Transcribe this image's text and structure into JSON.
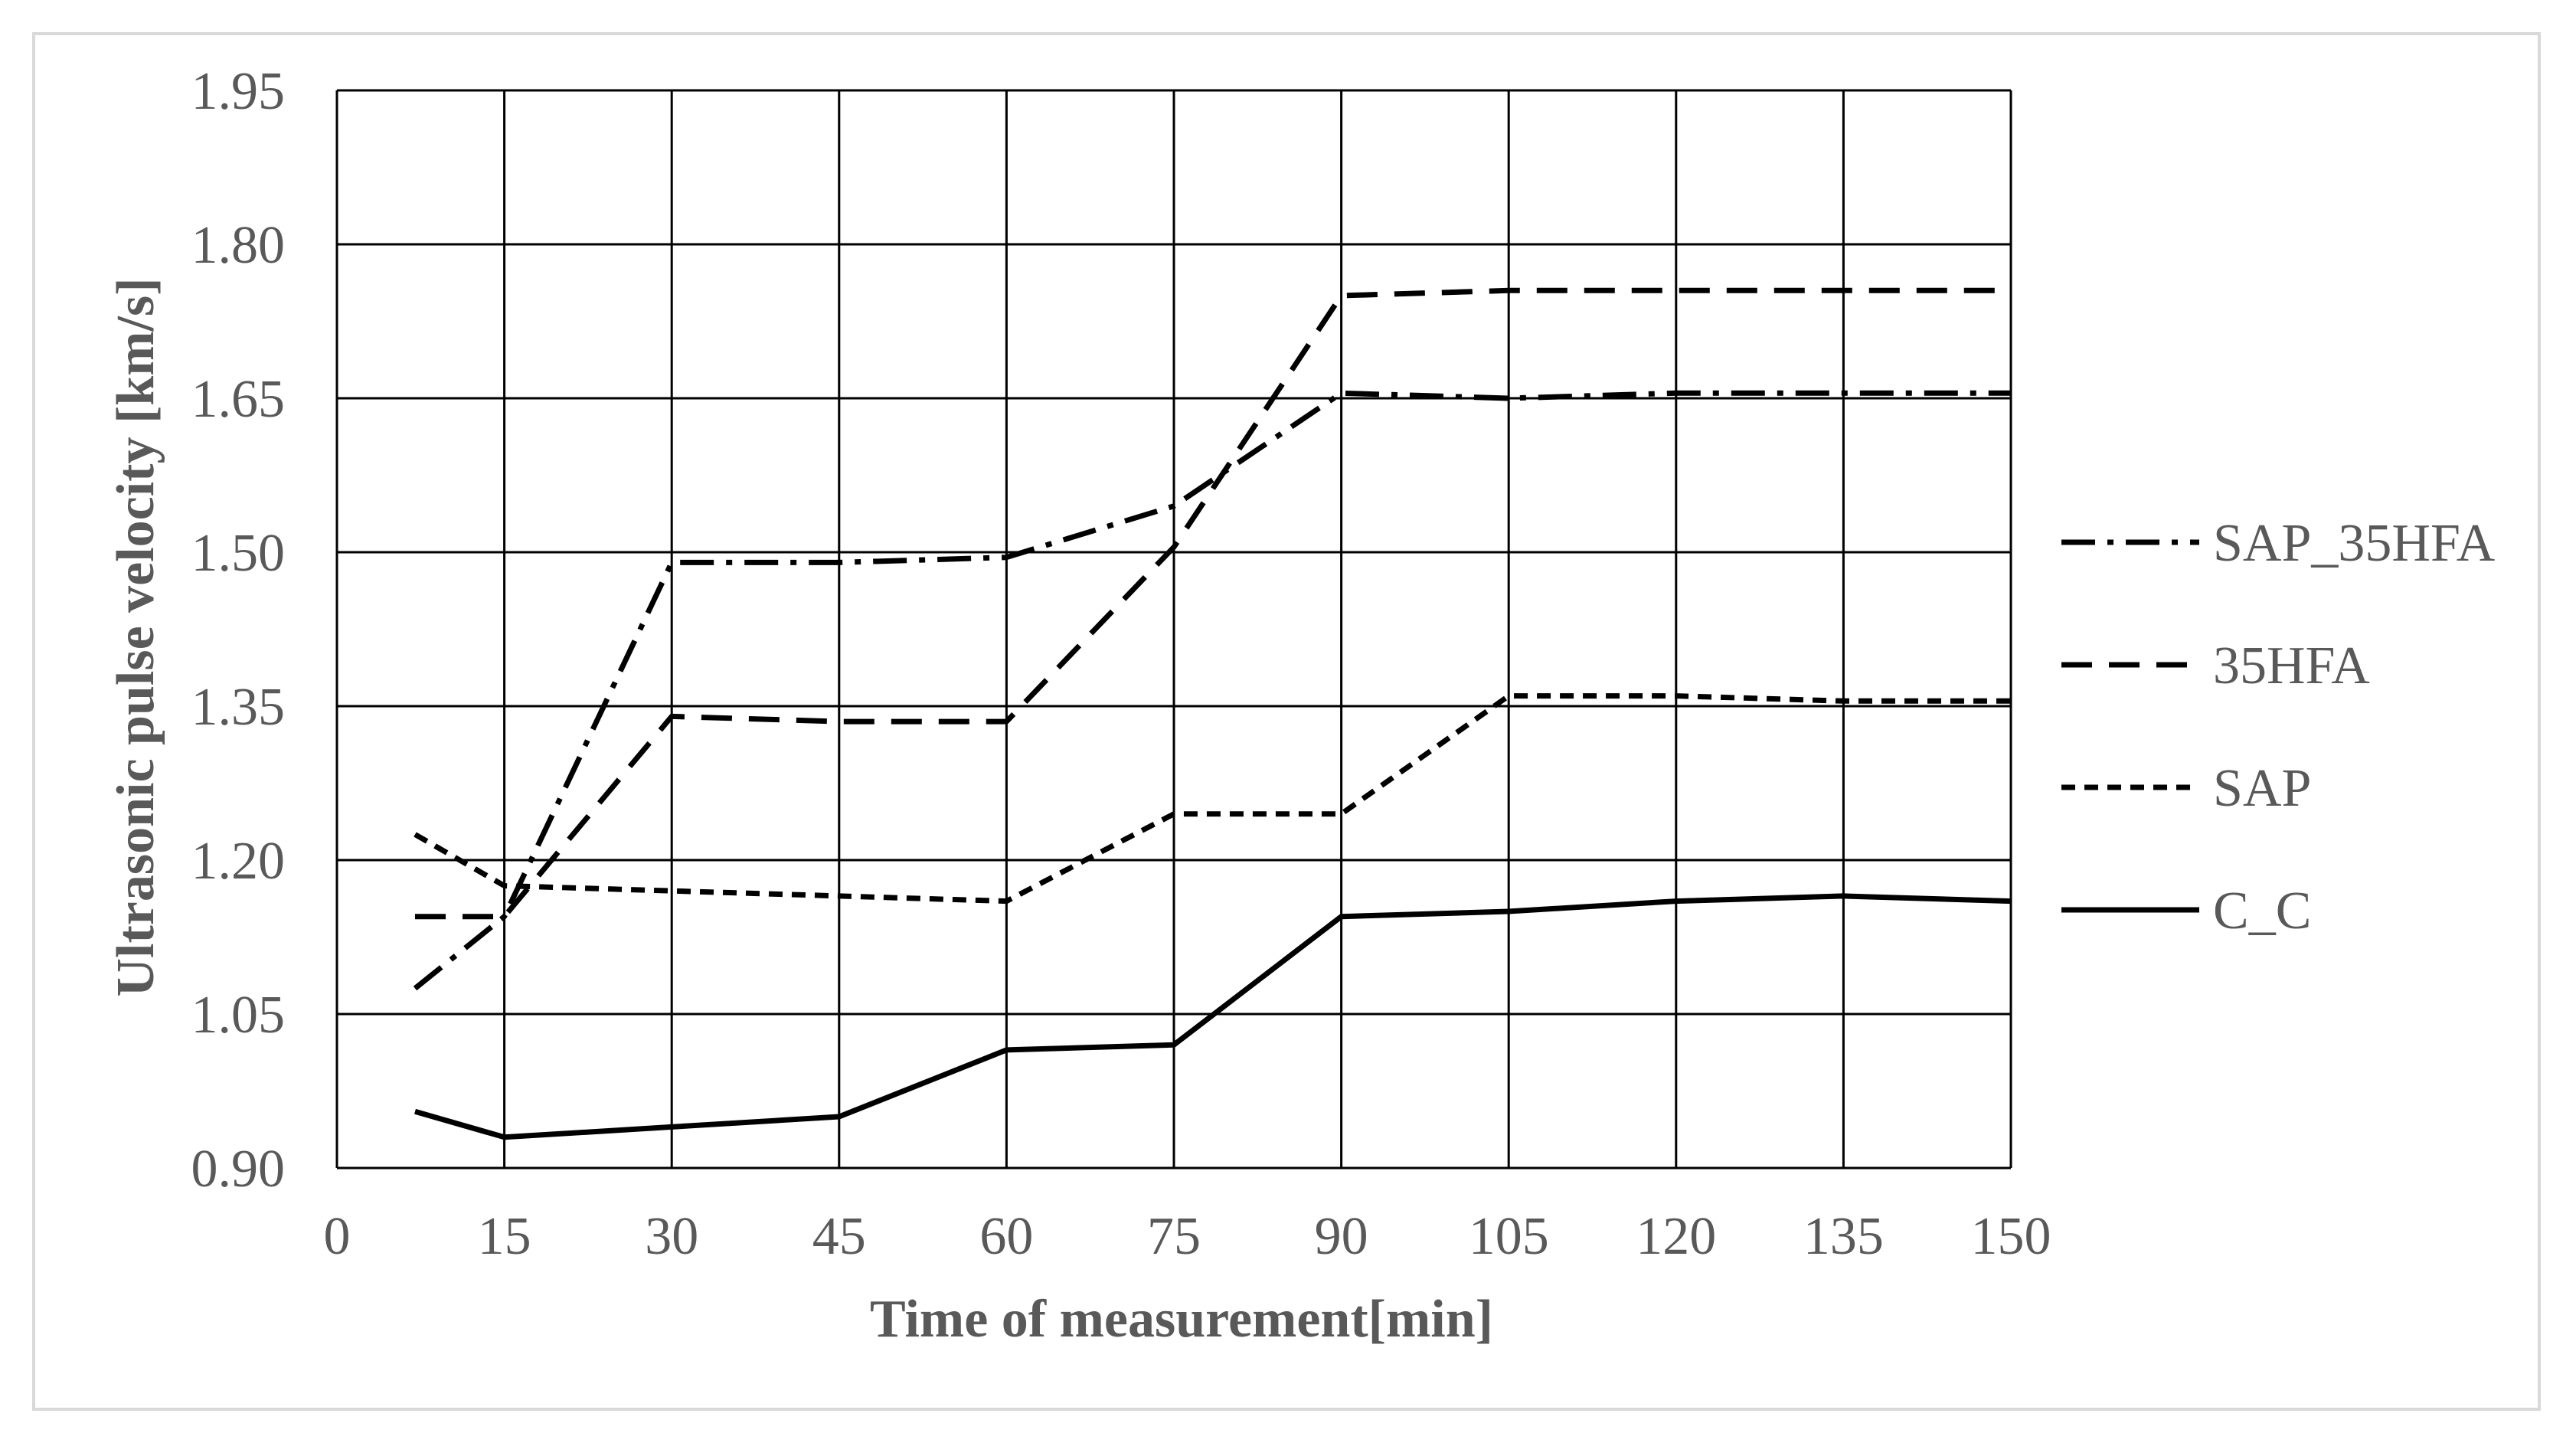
{
  "chart_data": {
    "type": "line",
    "xlabel": "Time of measurement[min]",
    "ylabel": "Ultrasonic pulse velocity [km/s]",
    "xlim": [
      0,
      150
    ],
    "ylim": [
      0.9,
      1.95
    ],
    "x_ticks": [
      "0",
      "15",
      "30",
      "45",
      "60",
      "75",
      "90",
      "105",
      "120",
      "135",
      "150"
    ],
    "y_ticks": [
      "0.90",
      "1.05",
      "1.20",
      "1.35",
      "1.50",
      "1.65",
      "1.80",
      "1.95"
    ],
    "x_tick_values": [
      0,
      15,
      30,
      45,
      60,
      75,
      90,
      105,
      120,
      135,
      150
    ],
    "y_tick_values": [
      0.9,
      1.05,
      1.2,
      1.35,
      1.5,
      1.65,
      1.8,
      1.95
    ],
    "grid": true,
    "legend_position": "right",
    "x": [
      7,
      15,
      30,
      45,
      60,
      75,
      90,
      105,
      120,
      135,
      150
    ],
    "series": [
      {
        "name": "SAP_35HFA",
        "dash": "dash-dot",
        "color": "#000000",
        "values": [
          1.075,
          1.145,
          1.49,
          1.49,
          1.495,
          1.545,
          1.655,
          1.65,
          1.655,
          1.655,
          1.655
        ]
      },
      {
        "name": "35HFA",
        "dash": "long-dash",
        "color": "#000000",
        "values": [
          1.145,
          1.145,
          1.34,
          1.335,
          1.335,
          1.505,
          1.75,
          1.755,
          1.755,
          1.755,
          1.755
        ]
      },
      {
        "name": "SAP",
        "dash": "short-dash",
        "color": "#000000",
        "values": [
          1.225,
          1.175,
          1.17,
          1.165,
          1.16,
          1.245,
          1.245,
          1.36,
          1.36,
          1.355,
          1.355
        ]
      },
      {
        "name": "C_C",
        "dash": "solid",
        "color": "#000000",
        "values": [
          0.955,
          0.93,
          0.94,
          0.95,
          1.015,
          1.02,
          1.145,
          1.15,
          1.16,
          1.165,
          1.16
        ]
      }
    ]
  }
}
